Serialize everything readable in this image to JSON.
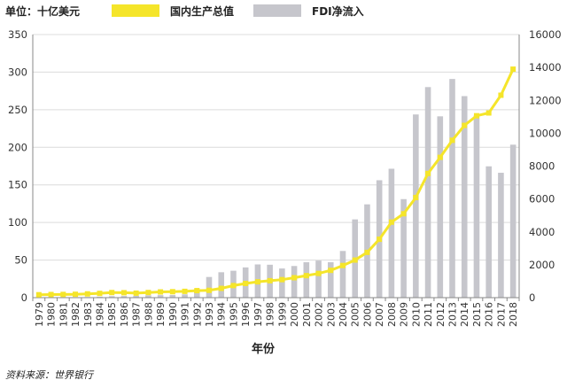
{
  "chart_data": {
    "type": "bar+line",
    "unit_label": "单位：十亿美元",
    "xlabel": "年份",
    "source": "资料来源：世界银行",
    "categories": [
      "1979",
      "1980",
      "1981",
      "1982",
      "1983",
      "1984",
      "1985",
      "1986",
      "1987",
      "1988",
      "1989",
      "1990",
      "1991",
      "1992",
      "1993",
      "1994",
      "1995",
      "1996",
      "1997",
      "1998",
      "1999",
      "2000",
      "2001",
      "2002",
      "2003",
      "2004",
      "2005",
      "2006",
      "2007",
      "2008",
      "2009",
      "2010",
      "2011",
      "2012",
      "2013",
      "2014",
      "2015",
      "2016",
      "2017",
      "2018"
    ],
    "y_left": {
      "min": 0,
      "max": 350,
      "ticks": [
        0,
        50,
        100,
        150,
        200,
        250,
        300,
        350
      ]
    },
    "y_right": {
      "min": 0,
      "max": 16000,
      "ticks": [
        0,
        2000,
        4000,
        6000,
        8000,
        10000,
        12000,
        14000,
        16000
      ]
    },
    "legend": [
      {
        "name": "国内生产总值",
        "color": "#f5e52a",
        "kind": "line"
      },
      {
        "name": "FDI净流入",
        "color": "#c6c6cc",
        "kind": "bar"
      }
    ],
    "series": [
      {
        "name": "FDI净流入",
        "axis": "left",
        "type": "bar",
        "color": "#c6c6cc",
        "values": [
          0,
          0.1,
          0.4,
          0.4,
          0.9,
          1.3,
          2.0,
          2.2,
          2.3,
          3.2,
          3.4,
          3.5,
          4.4,
          11.2,
          27.5,
          33.8,
          35.8,
          40.2,
          44.2,
          43.8,
          38.8,
          42.1,
          47.1,
          49.3,
          47.1,
          62.1,
          104.1,
          124.1,
          156.2,
          171.5,
          131.1,
          243.7,
          280.1,
          241.2,
          290.9,
          268.1,
          242.5,
          174.7,
          166.1,
          203.5
        ]
      },
      {
        "name": "国内生产总值",
        "axis": "right",
        "type": "line",
        "color": "#f5e52a",
        "values": [
          178,
          191,
          196,
          205,
          230,
          260,
          310,
          300,
          273,
          312,
          348,
          361,
          383,
          427,
          445,
          564,
          735,
          863,
          962,
          1029,
          1094,
          1211,
          1339,
          1471,
          1660,
          1955,
          2286,
          2752,
          3550,
          4594,
          5102,
          6087,
          7552,
          8532,
          9570,
          10475,
          11062,
          11233,
          12310,
          13895
        ]
      }
    ]
  }
}
